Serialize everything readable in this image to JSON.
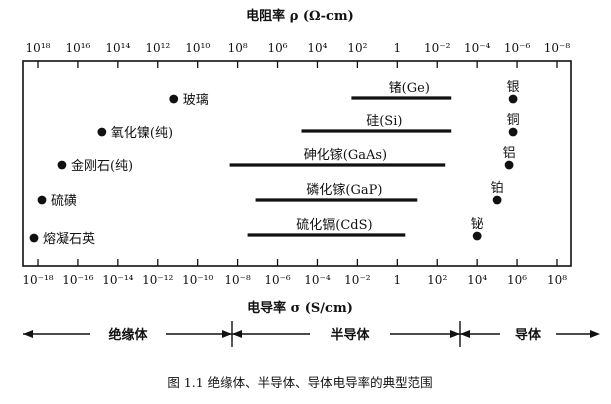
{
  "top_axis": {
    "title": "电阻率 ρ (Ω-cm)",
    "tick_labels": [
      "10¹⁸",
      "10¹⁶",
      "10¹⁴",
      "10¹²",
      "10¹⁰",
      "10⁸",
      "10⁶",
      "10⁴",
      "10²",
      "1",
      "10⁻²",
      "10⁻⁴",
      "10⁻⁶",
      "10⁻⁸"
    ]
  },
  "bottom_axis": {
    "title": "电导率 σ (S/cm)",
    "tick_labels": [
      "10⁻¹⁸",
      "10⁻¹⁶",
      "10⁻¹⁴",
      "10⁻¹²",
      "10⁻¹⁰",
      "10⁻⁸",
      "10⁻⁶",
      "10⁻⁴",
      "10⁻²",
      "1",
      "10²",
      "10⁴",
      "10⁶",
      "10⁸"
    ]
  },
  "materials": [
    {
      "label": "玻璃",
      "log_sigma": -11.2
    },
    {
      "label": "氧化镍(纯)",
      "log_sigma": -14.8
    },
    {
      "label": "金刚石(纯)",
      "log_sigma": -16.8
    },
    {
      "label": "硫磺",
      "log_sigma": -17.8
    },
    {
      "label": "熔凝石英",
      "log_sigma": -18.2
    },
    {
      "label": "银",
      "log_sigma": 5.8
    },
    {
      "label": "铜",
      "log_sigma": 5.8
    },
    {
      "label": "铝",
      "log_sigma": 5.6
    },
    {
      "label": "铂",
      "log_sigma": 5.0
    },
    {
      "label": "铋",
      "log_sigma": 4.0
    }
  ],
  "ranges": [
    {
      "label": "锗(Ge)",
      "log_sigma_min": -2.3,
      "log_sigma_max": 2.7
    },
    {
      "label": "硅(Si)",
      "log_sigma_min": -4.8,
      "log_sigma_max": 2.7
    },
    {
      "label": "砷化镓(GaAs)",
      "log_sigma_min": -8.4,
      "log_sigma_max": 2.4
    },
    {
      "label": "磷化镓(GaP)",
      "log_sigma_min": -7.1,
      "log_sigma_max": 1.0
    },
    {
      "label": "硫化镉(CdS)",
      "log_sigma_min": -7.5,
      "log_sigma_max": 0.4
    }
  ],
  "classes": [
    "绝缘体",
    "半导体",
    "导体"
  ],
  "caption": "图 1.1  绝缘体、半导体、导体电导率的典型范围"
}
